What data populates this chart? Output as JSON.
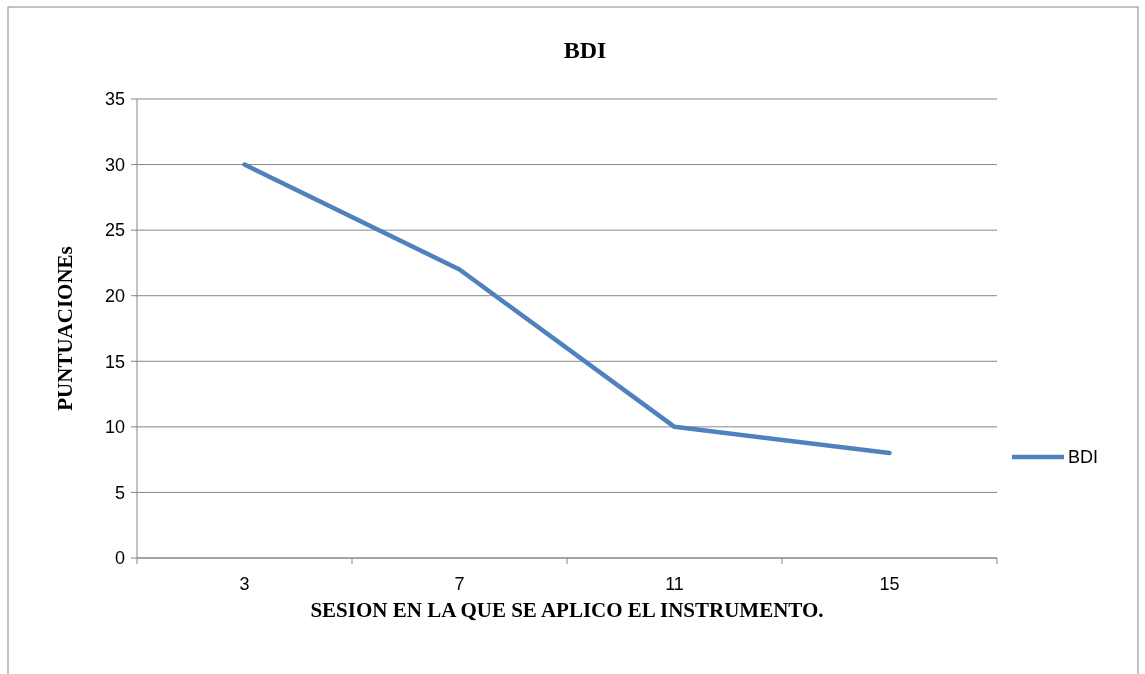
{
  "chart_data": {
    "type": "line",
    "title": "BDI",
    "xlabel": "SESION EN LA QUE SE APLICO EL INSTRUMENTO.",
    "ylabel": "PUNTUACIONEs",
    "categories": [
      "3",
      "7",
      "11",
      "15"
    ],
    "series": [
      {
        "name": "BDI",
        "color": "#4f81bd",
        "values": [
          30,
          22,
          10,
          8
        ]
      }
    ],
    "ylim": [
      0,
      35
    ],
    "yticks": [
      0,
      5,
      10,
      15,
      20,
      25,
      30,
      35
    ],
    "grid": "y",
    "legend": "right",
    "marker": "none",
    "line_style": "solid"
  }
}
